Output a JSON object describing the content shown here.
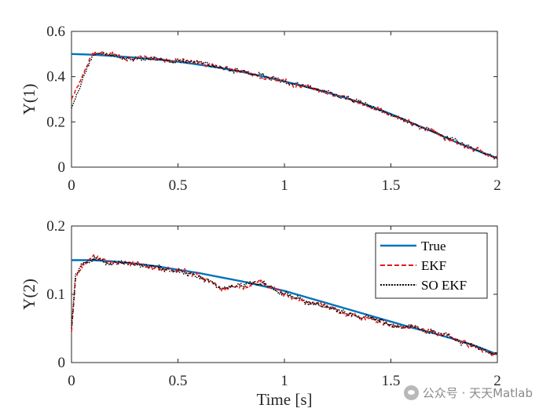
{
  "chart_data": [
    {
      "type": "line",
      "ylabel": "Y(1)",
      "xlabel": "",
      "xlim": [
        0,
        2
      ],
      "ylim": [
        0,
        0.6
      ],
      "xticks": [
        0,
        0.5,
        1,
        1.5,
        2
      ],
      "xtick_labels": [
        "0",
        "0.5",
        "1",
        "1.5",
        "2"
      ],
      "yticks": [
        0,
        0.2,
        0.4,
        0.6
      ],
      "ytick_labels": [
        "0",
        "0.2",
        "0.4",
        "0.6"
      ],
      "x": [
        0,
        0.1,
        0.2,
        0.3,
        0.4,
        0.5,
        0.6,
        0.7,
        0.8,
        0.9,
        1.0,
        1.1,
        1.2,
        1.3,
        1.4,
        1.5,
        1.6,
        1.7,
        1.8,
        1.9,
        2.0
      ],
      "series": [
        {
          "name": "True",
          "values": [
            0.5,
            0.497,
            0.491,
            0.484,
            0.476,
            0.466,
            0.453,
            0.438,
            0.421,
            0.401,
            0.379,
            0.355,
            0.33,
            0.302,
            0.271,
            0.235,
            0.195,
            0.155,
            0.113,
            0.075,
            0.04
          ]
        },
        {
          "name": "EKF",
          "values": [
            0.3,
            0.505,
            0.496,
            0.48,
            0.48,
            0.47,
            0.465,
            0.445,
            0.425,
            0.4,
            0.38,
            0.352,
            0.333,
            0.3,
            0.27,
            0.23,
            0.19,
            0.158,
            0.11,
            0.08,
            0.04
          ]
        },
        {
          "name": "SO EKF",
          "values": [
            0.26,
            0.503,
            0.492,
            0.482,
            0.478,
            0.468,
            0.46,
            0.442,
            0.422,
            0.398,
            0.378,
            0.354,
            0.331,
            0.302,
            0.268,
            0.232,
            0.192,
            0.156,
            0.112,
            0.078,
            0.038
          ]
        }
      ],
      "noise": 0.009
    },
    {
      "type": "line",
      "ylabel": "Y(2)",
      "xlabel": "Time [s]",
      "xlim": [
        0,
        2
      ],
      "ylim": [
        0,
        0.2
      ],
      "xticks": [
        0,
        0.5,
        1,
        1.5,
        2
      ],
      "xtick_labels": [
        "0",
        "0.5",
        "1",
        "1.5",
        "2"
      ],
      "yticks": [
        0,
        0.1,
        0.2
      ],
      "ytick_labels": [
        "0",
        "0.1",
        "0.2"
      ],
      "x": [
        0,
        0.02,
        0.05,
        0.1,
        0.2,
        0.3,
        0.4,
        0.5,
        0.6,
        0.7,
        0.8,
        0.9,
        1.0,
        1.1,
        1.2,
        1.3,
        1.4,
        1.5,
        1.6,
        1.7,
        1.8,
        1.9,
        2.0
      ],
      "series": [
        {
          "name": "True",
          "values": [
            0.15,
            0.15,
            0.15,
            0.15,
            0.148,
            0.145,
            0.141,
            0.136,
            0.131,
            0.125,
            0.119,
            0.112,
            0.105,
            0.096,
            0.087,
            0.078,
            0.069,
            0.06,
            0.051,
            0.043,
            0.034,
            0.024,
            0.012
          ]
        },
        {
          "name": "EKF",
          "values": [
            0.045,
            0.125,
            0.14,
            0.155,
            0.147,
            0.146,
            0.14,
            0.135,
            0.128,
            0.108,
            0.113,
            0.118,
            0.1,
            0.088,
            0.082,
            0.072,
            0.065,
            0.055,
            0.052,
            0.045,
            0.035,
            0.023,
            0.01
          ]
        },
        {
          "name": "SO EKF",
          "values": [
            0.05,
            0.13,
            0.142,
            0.153,
            0.146,
            0.144,
            0.14,
            0.134,
            0.126,
            0.11,
            0.115,
            0.117,
            0.101,
            0.09,
            0.08,
            0.071,
            0.066,
            0.054,
            0.051,
            0.044,
            0.034,
            0.022,
            0.011
          ]
        }
      ],
      "noise": 0.0035,
      "legend": {
        "position": "top-right",
        "entries": [
          "True",
          "EKF",
          "SO EKF"
        ]
      }
    }
  ],
  "colors": {
    "true": "#0072BD",
    "ekf": "#E31A1C",
    "so_ekf": "#000000",
    "axes": "#262626"
  },
  "watermark": {
    "text": "公众号 · 天天Matlab",
    "icon": "wechat-icon"
  }
}
